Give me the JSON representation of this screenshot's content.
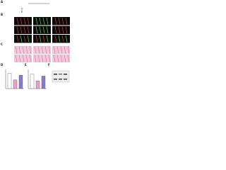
{
  "panels": {
    "a": "A",
    "b": "B",
    "c": "C",
    "d": "D",
    "e": "E",
    "f": "F"
  },
  "charts": [
    {
      "type": "bar",
      "ylim": [
        0,
        100
      ],
      "series": [
        {
          "color": "#ffffff",
          "values": [
            80
          ]
        },
        {
          "color": "#e8a0c8",
          "values": [
            45
          ]
        },
        {
          "color": "#8a7ac8",
          "values": [
            70
          ]
        }
      ]
    },
    {
      "type": "bar",
      "ylim": [
        0,
        100
      ],
      "series": [
        {
          "color": "#ffffff",
          "values": [
            75
          ]
        },
        {
          "color": "#e8a0c8",
          "values": [
            40
          ]
        },
        {
          "color": "#8a7ac8",
          "values": [
            65
          ]
        }
      ]
    }
  ]
}
